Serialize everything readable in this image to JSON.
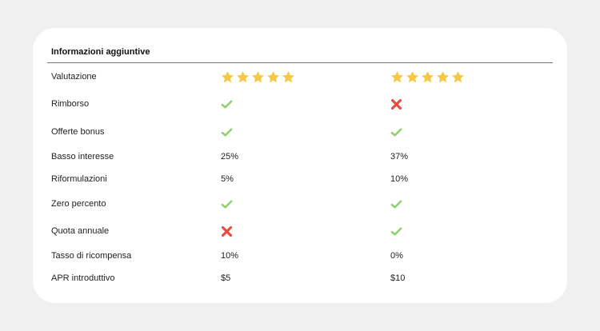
{
  "colors": {
    "star": "#f7c843",
    "check": "#8fd16a",
    "cross": "#e74c3c"
  },
  "title": "Informazioni aggiuntive",
  "rows": [
    {
      "label": "Valutazione",
      "col1": {
        "type": "stars",
        "value": 5,
        "max": 5
      },
      "col2": {
        "type": "stars",
        "value": 5,
        "max": 5
      }
    },
    {
      "label": "Rimborso",
      "col1": {
        "type": "icon",
        "icon": "check-icon"
      },
      "col2": {
        "type": "icon",
        "icon": "cross-icon"
      }
    },
    {
      "label": "Offerte bonus",
      "col1": {
        "type": "icon",
        "icon": "check-icon"
      },
      "col2": {
        "type": "icon",
        "icon": "check-icon"
      }
    },
    {
      "label": "Basso interesse",
      "col1": {
        "type": "text",
        "text": "25%"
      },
      "col2": {
        "type": "text",
        "text": "37%"
      }
    },
    {
      "label": "Riformulazioni",
      "col1": {
        "type": "text",
        "text": "5%"
      },
      "col2": {
        "type": "text",
        "text": "10%"
      }
    },
    {
      "label": "Zero percento",
      "col1": {
        "type": "icon",
        "icon": "check-icon"
      },
      "col2": {
        "type": "icon",
        "icon": "check-icon"
      }
    },
    {
      "label": "Quota annuale",
      "col1": {
        "type": "icon",
        "icon": "cross-icon"
      },
      "col2": {
        "type": "icon",
        "icon": "check-icon"
      }
    },
    {
      "label": "Tasso di ricompensa",
      "col1": {
        "type": "text",
        "text": "10%"
      },
      "col2": {
        "type": "text",
        "text": "0%"
      }
    },
    {
      "label": "APR introduttivo",
      "col1": {
        "type": "text",
        "text": "$5"
      },
      "col2": {
        "type": "text",
        "text": "$10"
      }
    }
  ]
}
